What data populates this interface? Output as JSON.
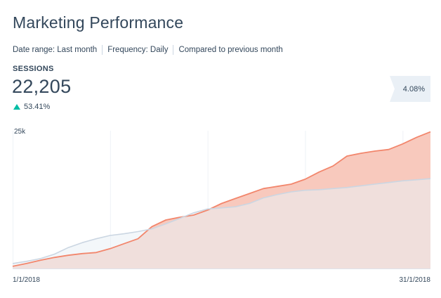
{
  "report": {
    "title": "Marketing Performance",
    "filters": {
      "date_range": "Date range: Last month",
      "frequency": "Frequency: Daily",
      "comparison": "Compared to previous month"
    },
    "metric": {
      "label": "SESSIONS",
      "value": "22,205",
      "change": "53.41%",
      "change_direction": "up",
      "change_color": "#00bda5"
    },
    "comparison_badge": "4.08%"
  },
  "chart_data": {
    "type": "area",
    "title": "",
    "xlabel": "",
    "ylabel": "",
    "ylim": [
      0,
      25000
    ],
    "y_tick_label": "25k",
    "x_tick_labels": [
      "1/1/2018",
      "31/1/2018"
    ],
    "grid": "vertical",
    "x": [
      1,
      2,
      3,
      4,
      5,
      6,
      7,
      8,
      9,
      10,
      11,
      12,
      13,
      14,
      15,
      16,
      17,
      18,
      19,
      20,
      21,
      22,
      23,
      24,
      25,
      26,
      27,
      28,
      29,
      30,
      31
    ],
    "series": [
      {
        "role": "current",
        "color": "#f2866c",
        "fill": "#f8c9bd",
        "values": [
          400,
          900,
          1500,
          2000,
          2400,
          2700,
          2900,
          3600,
          4500,
          5400,
          7600,
          8800,
          9300,
          9700,
          10600,
          11800,
          12700,
          13600,
          14500,
          14900,
          15300,
          16200,
          17500,
          18600,
          20400,
          20900,
          21300,
          21600,
          22600,
          23800,
          24800
        ]
      },
      {
        "role": "previous",
        "color": "#cbd6e2",
        "fill": "#eaf0f6",
        "values": [
          900,
          1300,
          1800,
          2600,
          3800,
          4700,
          5400,
          6000,
          6300,
          6700,
          7200,
          8100,
          9100,
          10100,
          10800,
          11000,
          11200,
          11800,
          12800,
          13400,
          13900,
          14200,
          14300,
          14500,
          14700,
          15000,
          15300,
          15600,
          15900,
          16100,
          16300
        ]
      }
    ]
  }
}
